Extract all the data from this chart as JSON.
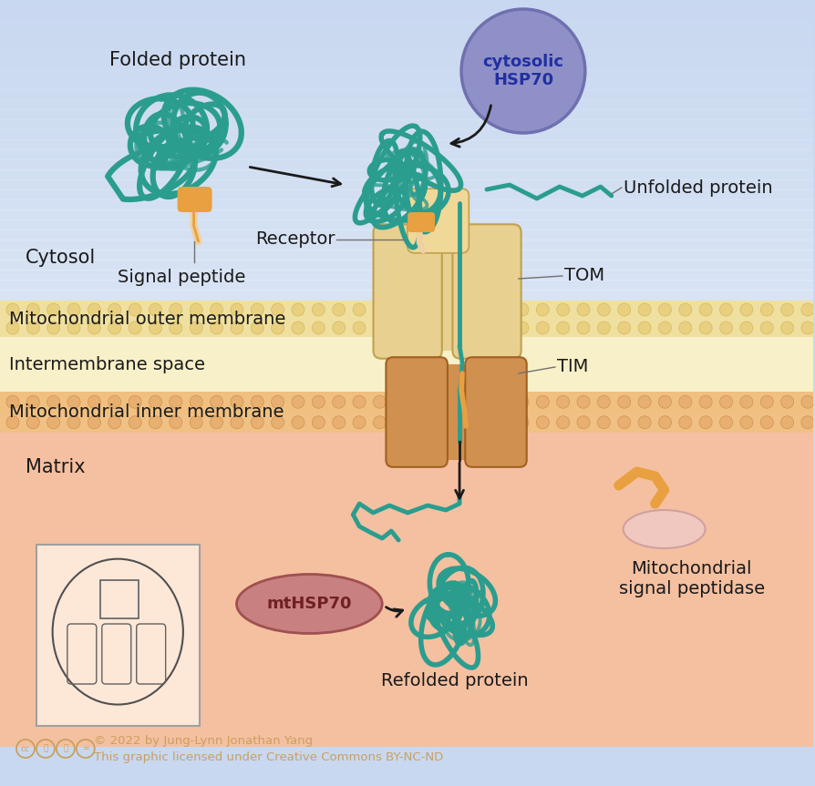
{
  "bg_cytosol_top": "#c8d8f0",
  "bg_cytosol_bottom": "#d8e8f8",
  "bg_outer_membrane": "#f0e0a0",
  "bg_intermembrane": "#faf0c0",
  "bg_inner_membrane": "#f0c890",
  "bg_matrix": "#f5c0a0",
  "om_stripe_color": "#e8d090",
  "im_stripe_color": "#f0b888",
  "protein_color": "#2a9d8f",
  "protein_fill": "#5ab8b0",
  "signal_peptide_color": "#e8a040",
  "signal_peptide_light": "#f0d0a0",
  "tom_color": "#e8d090",
  "tom_edge": "#c0a050",
  "tim_color": "#d09050",
  "tim_edge": "#a06020",
  "hsp70_fill": "#9090c8",
  "hsp70_edge": "#7070b0",
  "hsp70_text": "#2030a0",
  "mthsp70_fill": "#c88080",
  "mthsp70_edge": "#a05050",
  "mthsp70_text": "#702020",
  "arrow_color": "#1a1a1a",
  "label_color": "#1a1a1a",
  "copyright_color": "#c8a060",
  "labels": {
    "folded_protein": "Folded protein",
    "signal_peptide": "Signal peptide",
    "cytosolic_hsp70": "cytosolic\nHSP70",
    "unfolded_protein": "Unfolded protein",
    "receptor": "Receptor",
    "tom": "TOM",
    "tim": "TIM",
    "cytosol": "Cytosol",
    "outer_membrane": "Mitochondrial outer membrane",
    "intermembrane": "Intermembrane space",
    "inner_membrane": "Mitochondrial inner membrane",
    "matrix": "Matrix",
    "mthsp70": "mtHSP70",
    "refolded_protein": "Refolded protein",
    "signal_peptidase": "Mitochondrial\nsignal peptidase"
  },
  "copyright_line1": "© 2022 by Jung-Lynn Jonathan Yang",
  "copyright_line2": "This graphic licensed under Creative Commons BY-NC-ND",
  "figwidth": 8.94,
  "figheight": 8.63
}
